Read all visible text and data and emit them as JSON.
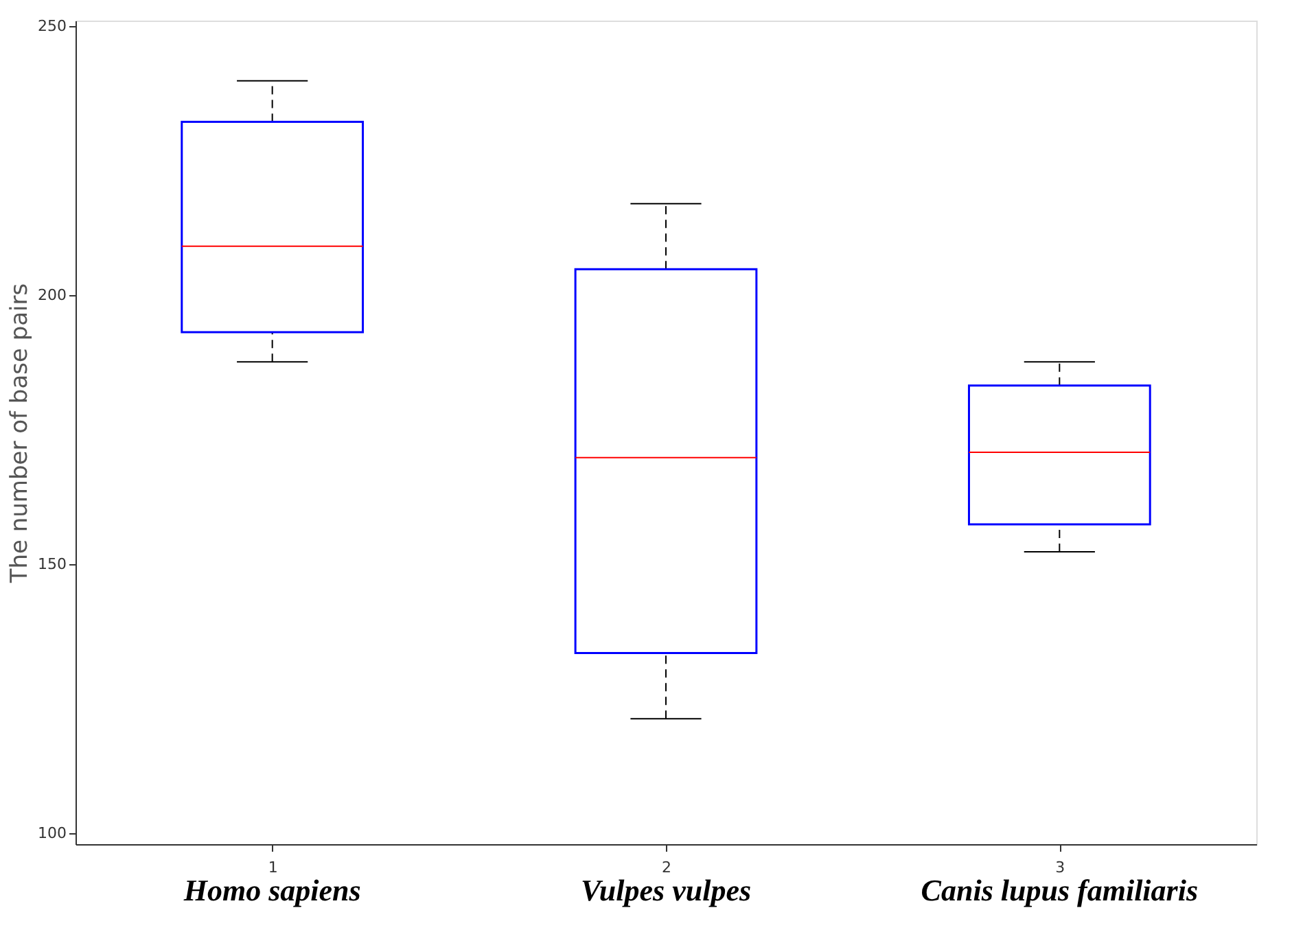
{
  "chart_data": {
    "type": "box",
    "x": [
      1,
      2,
      3
    ],
    "ylabel": "The number of base pairs",
    "xlim": [
      0.5,
      3.5
    ],
    "xticks": [
      1,
      2,
      3
    ],
    "ylim": [
      98,
      251
    ],
    "yticks": [
      100,
      150,
      200,
      250
    ],
    "series": [
      {
        "color": "#0000ff",
        "boxes": [
          {
            "low": 187.6,
            "q1": 193.1,
            "median": 209.1,
            "q3": 232.2,
            "high": 239.8
          },
          {
            "low": 121.3,
            "q1": 133.5,
            "median": 169.8,
            "q3": 204.8,
            "high": 217
          },
          {
            "low": 152.3,
            "q1": 157.4,
            "median": 170.8,
            "q3": 183.2,
            "high": 187.6
          }
        ]
      }
    ],
    "annotations": [
      "Homo sapiens",
      "Vulpes vulpes",
      "Canis lupus familiaris"
    ],
    "grid": false
  }
}
